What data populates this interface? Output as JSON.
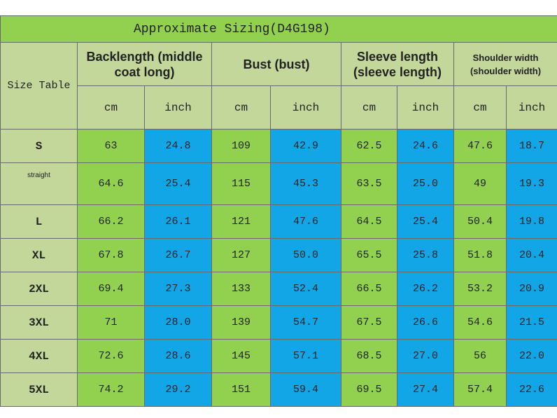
{
  "title": "Approximate Sizing(D4G198)",
  "corner": "Size Table",
  "groups": [
    {
      "label": "Backlength (middle coat long)",
      "units": [
        "cm",
        "inch"
      ]
    },
    {
      "label": "Bust (bust)",
      "units": [
        "cm",
        "inch"
      ]
    },
    {
      "label": "Sleeve length (sleeve length)",
      "units": [
        "cm",
        "inch"
      ]
    },
    {
      "label": "Shoulder width (shoulder width)",
      "units": [
        "cm",
        "inch"
      ]
    }
  ],
  "rows": [
    {
      "size": "S",
      "values": [
        "63",
        "24.8",
        "109",
        "42.9",
        "62.5",
        "24.6",
        "47.6",
        "18.7"
      ]
    },
    {
      "size": "straight",
      "values": [
        "64.6",
        "25.4",
        "115",
        "45.3",
        "63.5",
        "25.0",
        "49",
        "19.3"
      ]
    },
    {
      "size": "L",
      "values": [
        "66.2",
        "26.1",
        "121",
        "47.6",
        "64.5",
        "25.4",
        "50.4",
        "19.8"
      ]
    },
    {
      "size": "XL",
      "values": [
        "67.8",
        "26.7",
        "127",
        "50.0",
        "65.5",
        "25.8",
        "51.8",
        "20.4"
      ]
    },
    {
      "size": "2XL",
      "values": [
        "69.4",
        "27.3",
        "133",
        "52.4",
        "66.5",
        "26.2",
        "53.2",
        "20.9"
      ]
    },
    {
      "size": "3XL",
      "values": [
        "71",
        "28.0",
        "139",
        "54.7",
        "67.5",
        "26.6",
        "54.6",
        "21.5"
      ]
    },
    {
      "size": "4XL",
      "values": [
        "72.6",
        "28.6",
        "145",
        "57.1",
        "68.5",
        "27.0",
        "56",
        "22.0"
      ]
    },
    {
      "size": "5XL",
      "values": [
        "74.2",
        "29.2",
        "151",
        "59.4",
        "69.5",
        "27.4",
        "57.4",
        "22.6"
      ]
    }
  ]
}
